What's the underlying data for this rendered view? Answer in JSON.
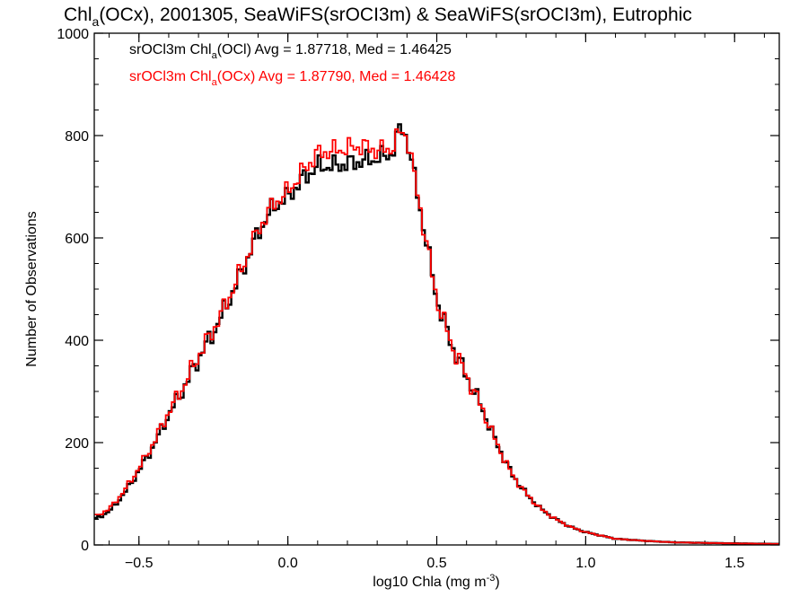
{
  "title": {
    "pre": "Chl",
    "sub": "a",
    "post": "(OCx), 2001305, SeaWiFS(srOCI3m) & SeaWiFS(srOCI3m), Eutrophic"
  },
  "legend": [
    {
      "pre": "srOCl3m Chl",
      "sub": "a",
      "post": "(OCl) Avg = 1.87718, Med = 1.46425",
      "color": "#000000"
    },
    {
      "pre": "srOCl3m Chl",
      "sub": "a",
      "post": "(OCx) Avg = 1.87790, Med = 1.46428",
      "color": "#ff0000"
    }
  ],
  "chart_data": {
    "type": "line",
    "title": "Chla(OCx), 2001305, SeaWiFS(srOCI3m) & SeaWiFS(srOCI3m), Eutrophic",
    "xlabel": {
      "pre": "log10 Chla (mg m",
      "sup": "-3",
      "post": ")"
    },
    "ylabel": "Number of Observations",
    "xlim": [
      -0.65,
      1.65
    ],
    "ylim": [
      0,
      1000
    ],
    "xticks": [
      -0.5,
      0.0,
      0.5,
      1.0,
      1.5
    ],
    "xtick_labels": [
      "−0.5",
      "0.0",
      "0.5",
      "1.0",
      "1.5"
    ],
    "yticks": [
      0,
      200,
      400,
      600,
      800,
      1000
    ],
    "ytick_labels": [
      "0",
      "200",
      "400",
      "600",
      "800",
      "1000"
    ],
    "grid": false,
    "legend_position": "top-left",
    "series": [
      {
        "name": "srOCl3m Chla(OCl) Avg = 1.87718, Med = 1.46425",
        "color": "#000000",
        "x": [
          -0.65,
          -0.6,
          -0.55,
          -0.5,
          -0.45,
          -0.4,
          -0.35,
          -0.3,
          -0.25,
          -0.2,
          -0.15,
          -0.1,
          -0.05,
          0.0,
          0.05,
          0.1,
          0.15,
          0.2,
          0.25,
          0.3,
          0.35,
          0.38,
          0.4,
          0.45,
          0.5,
          0.55,
          0.6,
          0.65,
          0.7,
          0.75,
          0.8,
          0.85,
          0.9,
          0.95,
          1.0,
          1.1,
          1.2,
          1.3,
          1.4,
          1.5,
          1.65
        ],
        "y": [
          50,
          65,
          100,
          145,
          195,
          255,
          305,
          365,
          415,
          475,
          540,
          610,
          660,
          680,
          715,
          740,
          740,
          745,
          750,
          755,
          765,
          820,
          795,
          640,
          480,
          390,
          330,
          270,
          200,
          140,
          100,
          70,
          50,
          35,
          25,
          12,
          8,
          5,
          4,
          3,
          2
        ]
      },
      {
        "name": "srOCl3m Chla(OCx) Avg = 1.87790, Med = 1.46428",
        "color": "#ff0000",
        "x": [
          -0.65,
          -0.6,
          -0.55,
          -0.5,
          -0.45,
          -0.4,
          -0.35,
          -0.3,
          -0.25,
          -0.2,
          -0.15,
          -0.1,
          -0.05,
          0.0,
          0.05,
          0.1,
          0.15,
          0.2,
          0.25,
          0.3,
          0.35,
          0.38,
          0.4,
          0.45,
          0.5,
          0.55,
          0.6,
          0.65,
          0.7,
          0.75,
          0.8,
          0.85,
          0.9,
          0.95,
          1.0,
          1.1,
          1.2,
          1.3,
          1.4,
          1.5,
          1.65
        ],
        "y": [
          55,
          70,
          105,
          150,
          200,
          260,
          310,
          370,
          420,
          480,
          545,
          615,
          665,
          690,
          730,
          765,
          770,
          775,
          780,
          770,
          775,
          810,
          800,
          640,
          480,
          390,
          330,
          270,
          200,
          140,
          100,
          70,
          50,
          35,
          25,
          12,
          8,
          5,
          4,
          3,
          2
        ]
      }
    ]
  }
}
